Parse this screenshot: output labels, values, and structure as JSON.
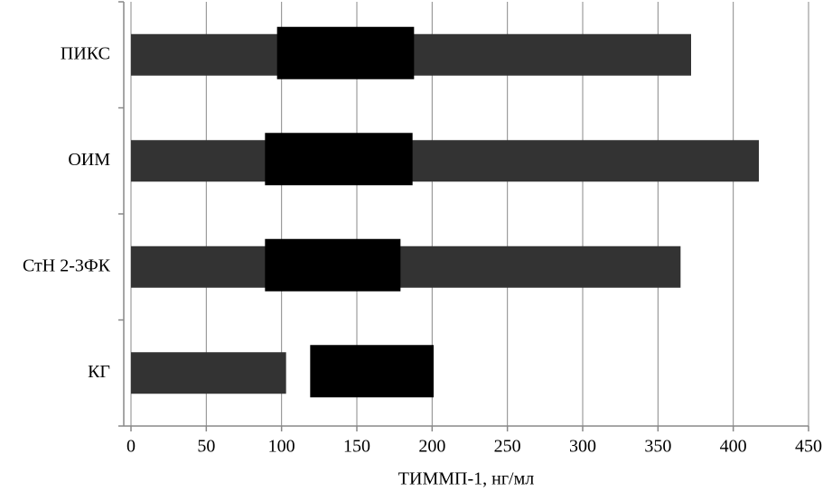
{
  "chart_data": {
    "type": "range-bar",
    "categories": [
      "ПИКС",
      "ОИМ",
      "СтН 2-3ФК",
      "КГ"
    ],
    "series": [
      {
        "color": "#333333",
        "values": [
          372,
          417,
          365,
          103
        ]
      },
      {
        "color": "#000000",
        "starts": [
          97,
          89,
          89,
          119
        ],
        "values": [
          188,
          187,
          179,
          201
        ]
      }
    ],
    "x_label": "ТИММП-1, нг/мл",
    "xlim": [
      0,
      450
    ],
    "xticks": [
      0,
      50,
      100,
      150,
      200,
      250,
      300,
      350,
      400,
      450
    ],
    "grid": true
  }
}
